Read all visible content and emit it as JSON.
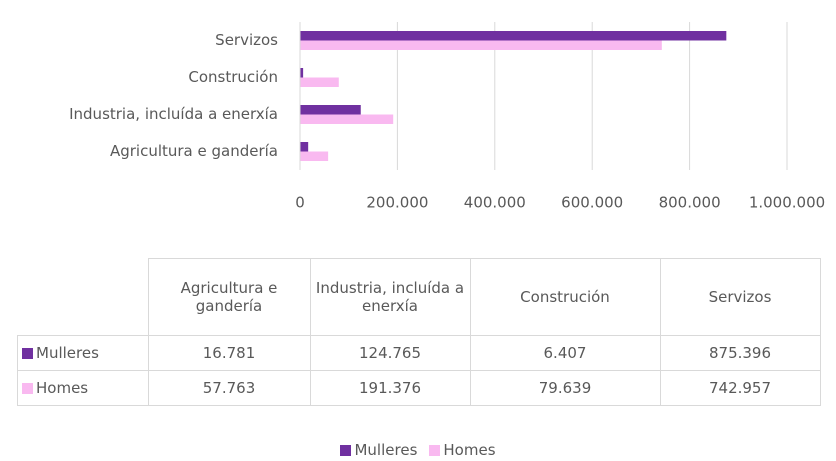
{
  "chart_data": {
    "type": "barh",
    "categories": [
      "Agricultura e gandería",
      "Industria, incluída a enerxía",
      "Construción",
      "Servizos"
    ],
    "series": [
      {
        "name": "Mulleres",
        "color": "#7030a0",
        "values": [
          16781,
          124765,
          6407,
          875396
        ],
        "value_labels": [
          "16.781",
          "124.765",
          "6.407",
          "875.396"
        ]
      },
      {
        "name": "Homes",
        "color": "#f9b9f0",
        "values": [
          57763,
          191376,
          79639,
          742957
        ],
        "value_labels": [
          "57.763",
          "191.376",
          "79.639",
          "742.957"
        ]
      }
    ],
    "xlim": [
      0,
      1000000
    ],
    "xticks": [
      0,
      {
        "value": 200000,
        "label": "200.000"
      },
      {
        "value": 400000,
        "label": "400.000"
      },
      {
        "value": 600000,
        "label": "600.000"
      },
      {
        "value": 800000,
        "label": "800.000"
      },
      {
        "value": 1000000,
        "label": "1.000.000"
      }
    ],
    "grid": true,
    "legend": "bottom",
    "data_table": true
  }
}
